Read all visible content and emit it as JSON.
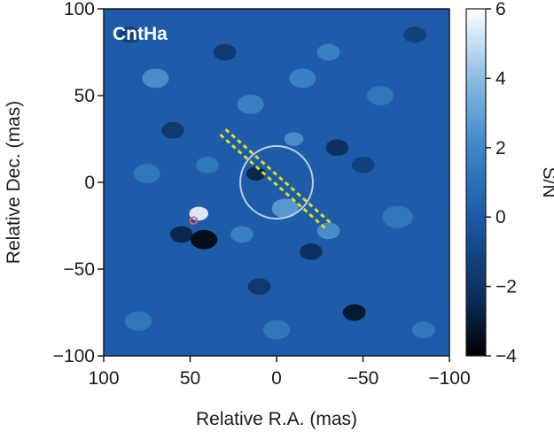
{
  "chart_data": {
    "type": "heatmap",
    "panel_label": "CntHa",
    "xlabel": "Relative R.A. (mas)",
    "ylabel": "Relative Dec. (mas)",
    "xlim": [
      100,
      -100
    ],
    "ylim": [
      -100,
      100
    ],
    "xticks": [
      100,
      50,
      0,
      -50,
      -100
    ],
    "yticks": [
      100,
      50,
      0,
      -50,
      -100
    ],
    "colorbar": {
      "label": "S/N",
      "range": [
        -4,
        6
      ],
      "ticks": [
        6,
        4,
        2,
        0,
        -2,
        -4
      ],
      "colormap": [
        "#000000",
        "#0a2a55",
        "#1b5aa6",
        "#3d86c8",
        "#8bbde3",
        "#ffffff"
      ]
    },
    "features": {
      "central_circle": {
        "center": [
          0,
          0
        ],
        "radius_mas": 21,
        "color": "#b9cde6"
      },
      "candidate_marker": {
        "center": [
          48,
          -22
        ],
        "color": "#e06060"
      },
      "dashed_line": {
        "from": [
          31,
          29
        ],
        "to": [
          -31,
          -26
        ],
        "color": "#d8e01e"
      }
    },
    "blobs": [
      {
        "x": 45,
        "y": -18,
        "sn": 6.0,
        "s": 5
      },
      {
        "x": 42,
        "y": -33,
        "sn": -4.2,
        "s": 7
      },
      {
        "x": 55,
        "y": -30,
        "sn": -3.0,
        "s": 6
      },
      {
        "x": 12,
        "y": 5,
        "sn": -3.0,
        "s": 5
      },
      {
        "x": -5,
        "y": -15,
        "sn": 3.0,
        "s": 7
      },
      {
        "x": -35,
        "y": 20,
        "sn": -2.5,
        "s": 6
      },
      {
        "x": -20,
        "y": -40,
        "sn": -2.5,
        "s": 6
      },
      {
        "x": -30,
        "y": -28,
        "sn": 2.5,
        "s": 6
      },
      {
        "x": 20,
        "y": -30,
        "sn": 2.0,
        "s": 6
      },
      {
        "x": 15,
        "y": 45,
        "sn": 2.0,
        "s": 7
      },
      {
        "x": -15,
        "y": 60,
        "sn": 2.0,
        "s": 7
      },
      {
        "x": 70,
        "y": 60,
        "sn": 2.5,
        "s": 7
      },
      {
        "x": -45,
        "y": -75,
        "sn": -3.5,
        "s": 6
      },
      {
        "x": -30,
        "y": 75,
        "sn": 2.0,
        "s": 6
      },
      {
        "x": -60,
        "y": 50,
        "sn": 1.5,
        "s": 7
      },
      {
        "x": 80,
        "y": -80,
        "sn": 1.5,
        "s": 7
      },
      {
        "x": 60,
        "y": 30,
        "sn": -2.0,
        "s": 6
      },
      {
        "x": -70,
        "y": -20,
        "sn": 1.5,
        "s": 8
      },
      {
        "x": 30,
        "y": 75,
        "sn": -2.0,
        "s": 6
      },
      {
        "x": -10,
        "y": 25,
        "sn": 2.5,
        "s": 5
      },
      {
        "x": 10,
        "y": -60,
        "sn": -2.0,
        "s": 6
      },
      {
        "x": 75,
        "y": 5,
        "sn": 1.5,
        "s": 7
      },
      {
        "x": -80,
        "y": 85,
        "sn": -1.5,
        "s": 6
      },
      {
        "x": 85,
        "y": 85,
        "sn": -1.5,
        "s": 6
      },
      {
        "x": -85,
        "y": -85,
        "sn": 1.5,
        "s": 6
      },
      {
        "x": 0,
        "y": -85,
        "sn": 1.5,
        "s": 7
      },
      {
        "x": -50,
        "y": 10,
        "sn": -1.5,
        "s": 6
      },
      {
        "x": 40,
        "y": 10,
        "sn": 1.5,
        "s": 6
      }
    ]
  }
}
